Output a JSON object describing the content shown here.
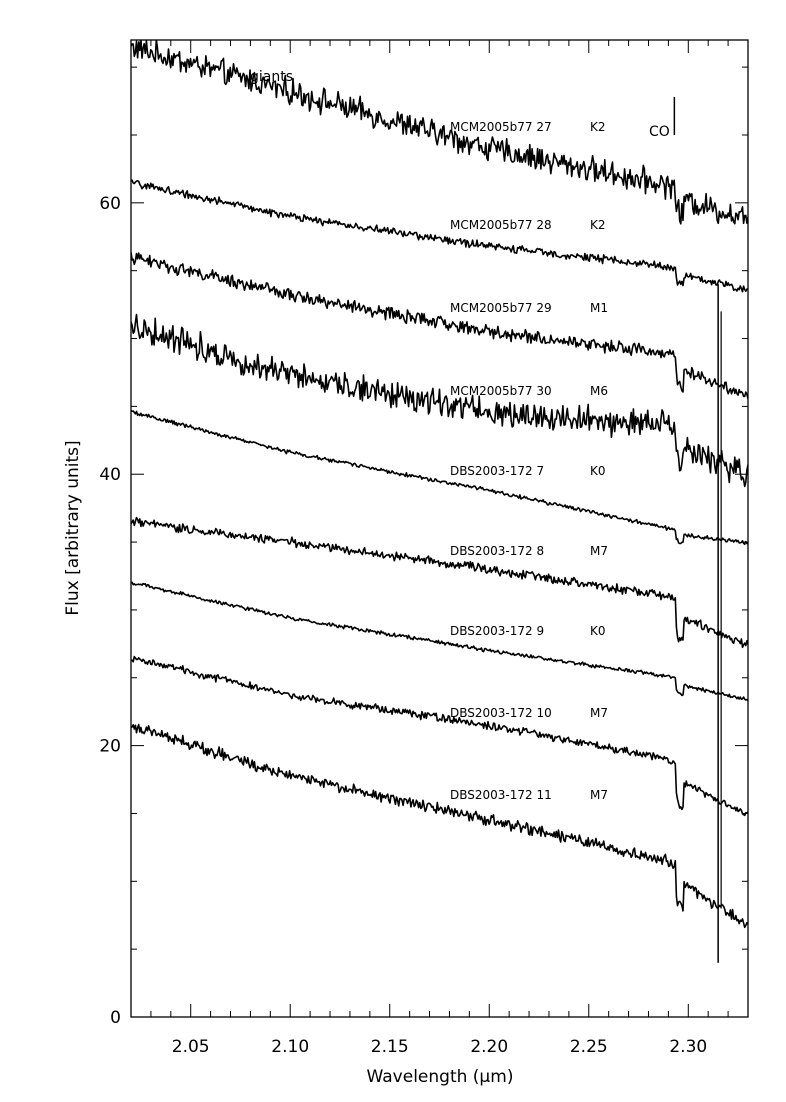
{
  "chart_data": {
    "type": "line",
    "title": "",
    "xlabel": "Wavelength (",
    "xlabel_unit": "μm",
    "xlabel_close": ")",
    "ylabel": "Flux [arbitrary units]",
    "xlim": [
      2.02,
      2.33
    ],
    "ylim": [
      0,
      72
    ],
    "x_ticks": [
      2.05,
      2.1,
      2.15,
      2.2,
      2.25,
      2.3
    ],
    "x_tick_labels": [
      "2.05",
      "2.10",
      "2.15",
      "2.20",
      "2.25",
      "2.30"
    ],
    "y_ticks": [
      0,
      20,
      40,
      60
    ],
    "y_tick_labels": [
      "0",
      "20",
      "40",
      "60"
    ],
    "grid": false,
    "annotations": {
      "group": "giants",
      "feature": "CO",
      "feature_x": 2.293,
      "feature_y_range": [
        65,
        67.8
      ]
    },
    "spike": {
      "x": 2.315,
      "y_range": [
        4,
        54
      ]
    },
    "series": [
      {
        "star": "MCM2005b77 27",
        "type": "K2",
        "y_start": 71.5,
        "y_end": 61.3,
        "co_drop": 2.0,
        "noise": 1.0,
        "x": [
          2.02,
          2.1,
          2.2,
          2.29,
          2.33
        ],
        "y": [
          71.5,
          68.2,
          64.0,
          61.3,
          59.5
        ]
      },
      {
        "star": "MCM2005b77 28",
        "type": "K2",
        "y_start": 61.5,
        "y_end": 55.3,
        "co_drop": 1.2,
        "noise": 0.3,
        "x": [
          2.02,
          2.1,
          2.2,
          2.29,
          2.33
        ],
        "y": [
          61.5,
          59.0,
          56.8,
          55.3,
          54.0
        ]
      },
      {
        "star": "MCM2005b77 29",
        "type": "M1",
        "y_start": 56.0,
        "y_end": 48.9,
        "co_drop": 2.2,
        "noise": 0.5,
        "x": [
          2.02,
          2.1,
          2.2,
          2.29,
          2.33
        ],
        "y": [
          56.0,
          53.2,
          50.5,
          48.9,
          46.6
        ]
      },
      {
        "star": "MCM2005b77 30",
        "type": "M6",
        "y_start": 51.0,
        "y_end": 43.6,
        "co_drop": 2.6,
        "noise": 1.1,
        "x": [
          2.02,
          2.1,
          2.2,
          2.29,
          2.33
        ],
        "y": [
          51.0,
          47.3,
          44.6,
          43.6,
          40.6
        ]
      },
      {
        "star": "DBS2003-172 7",
        "type": "K0",
        "y_start": 44.6,
        "y_end": 36.0,
        "co_drop": 1.0,
        "noise": 0.15,
        "x": [
          2.02,
          2.1,
          2.2,
          2.29,
          2.33
        ],
        "y": [
          44.6,
          41.6,
          38.8,
          36.0,
          35.3
        ]
      },
      {
        "star": "DBS2003-172 8",
        "type": "M7",
        "y_start": 36.5,
        "y_end": 31.0,
        "co_drop": 3.2,
        "noise": 0.35,
        "x": [
          2.02,
          2.1,
          2.2,
          2.29,
          2.33
        ],
        "y": [
          36.5,
          35.0,
          33.0,
          31.0,
          28.5
        ]
      },
      {
        "star": "DBS2003-172 9",
        "type": "K0",
        "y_start": 32.0,
        "y_end": 25.1,
        "co_drop": 1.2,
        "noise": 0.15,
        "x": [
          2.02,
          2.1,
          2.2,
          2.29,
          2.33
        ],
        "y": [
          32.0,
          29.4,
          27.0,
          25.1,
          23.8
        ]
      },
      {
        "star": "DBS2003-172 10",
        "type": "M7",
        "y_start": 26.5,
        "y_end": 19.0,
        "co_drop": 3.3,
        "noise": 0.3,
        "x": [
          2.02,
          2.1,
          2.2,
          2.29,
          2.33
        ],
        "y": [
          26.5,
          23.7,
          21.5,
          19.0,
          16.0
        ]
      },
      {
        "star": "DBS2003-172 11",
        "type": "M7",
        "y_start": 21.5,
        "y_end": 11.5,
        "co_drop": 3.0,
        "noise": 0.45,
        "x": [
          2.02,
          2.1,
          2.2,
          2.29,
          2.33
        ],
        "y": [
          21.5,
          17.8,
          14.5,
          11.5,
          7.8
        ]
      }
    ]
  }
}
